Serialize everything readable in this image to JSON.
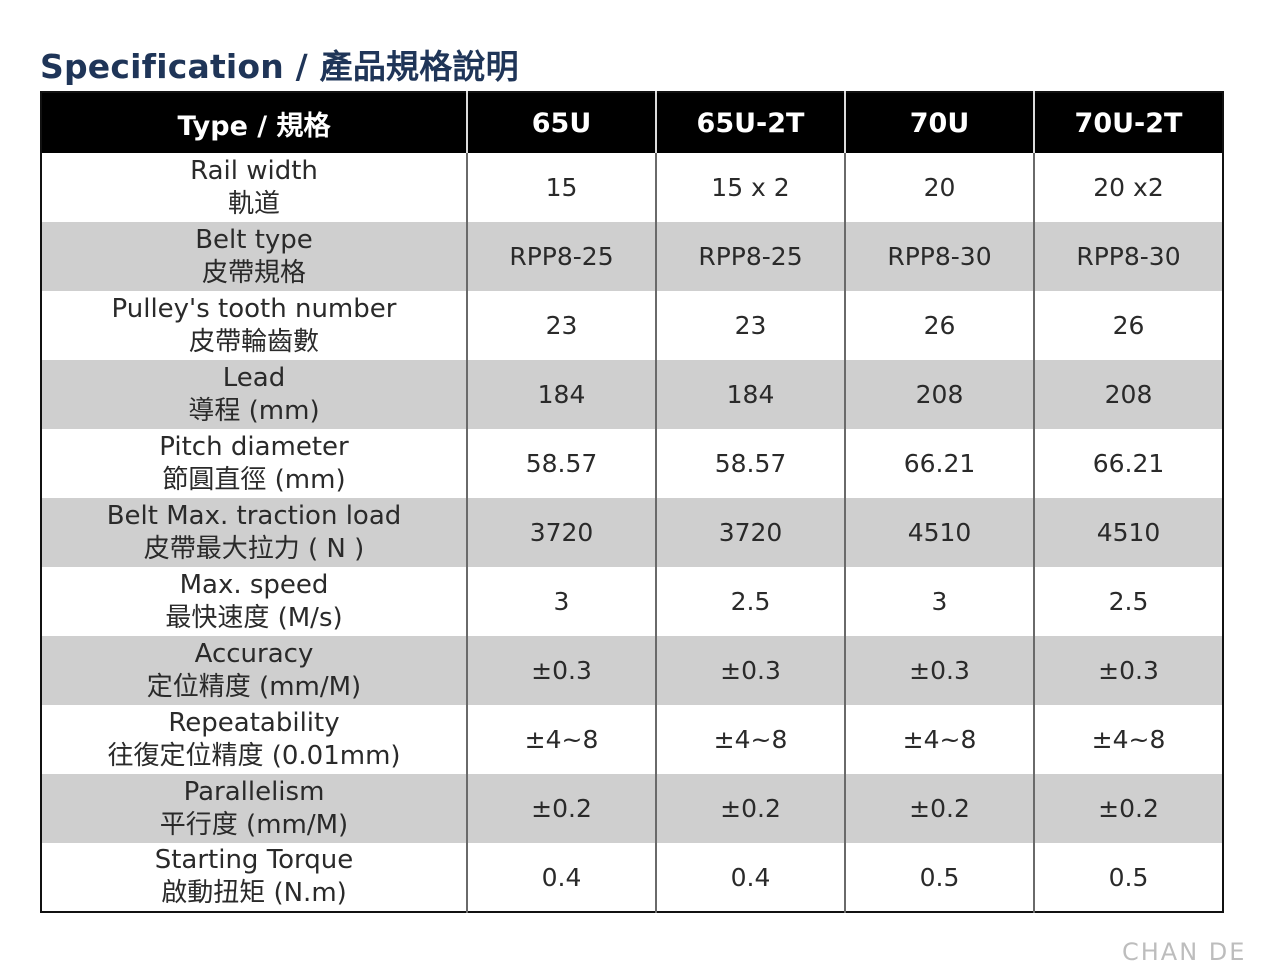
{
  "title": "Specification / 產品規格說明",
  "table": {
    "headers": [
      "Type / 規格",
      "65U",
      "65U-2T",
      "70U",
      "70U-2T"
    ],
    "rows": [
      {
        "label_en": "Rail width",
        "label_zh": "軌道",
        "values": [
          "15",
          "15 x 2",
          "20",
          "20 x2"
        ]
      },
      {
        "label_en": "Belt type",
        "label_zh": "皮帶規格",
        "values": [
          "RPP8-25",
          "RPP8-25",
          "RPP8-30",
          "RPP8-30"
        ]
      },
      {
        "label_en": "Pulley's tooth number",
        "label_zh": "皮帶輪齒數",
        "values": [
          "23",
          "23",
          "26",
          "26"
        ]
      },
      {
        "label_en": "Lead",
        "label_zh": "導程 (mm)",
        "values": [
          "184",
          "184",
          "208",
          "208"
        ]
      },
      {
        "label_en": "Pitch diameter",
        "label_zh": "節圓直徑 (mm)",
        "values": [
          "58.57",
          "58.57",
          "66.21",
          "66.21"
        ]
      },
      {
        "label_en": "Belt Max. traction load",
        "label_zh": "皮帶最大拉力 ( N )",
        "values": [
          "3720",
          "3720",
          "4510",
          "4510"
        ]
      },
      {
        "label_en": "Max. speed",
        "label_zh": "最快速度 (M/s)",
        "values": [
          "3",
          "2.5",
          "3",
          "2.5"
        ]
      },
      {
        "label_en": "Accuracy",
        "label_zh": "定位精度 (mm/M)",
        "values": [
          "±0.3",
          "±0.3",
          "±0.3",
          "±0.3"
        ]
      },
      {
        "label_en": "Repeatability",
        "label_zh": "往復定位精度 (0.01mm)",
        "values": [
          "±4~8",
          "±4~8",
          "±4~8",
          "±4~8"
        ]
      },
      {
        "label_en": "Parallelism",
        "label_zh": "平行度 (mm/M)",
        "values": [
          "±0.2",
          "±0.2",
          "±0.2",
          "±0.2"
        ]
      },
      {
        "label_en": "Starting Torque",
        "label_zh": "啟動扭矩 (N.m)",
        "values": [
          "0.4",
          "0.4",
          "0.5",
          "0.5"
        ]
      }
    ]
  },
  "watermark": "CHAN DE"
}
